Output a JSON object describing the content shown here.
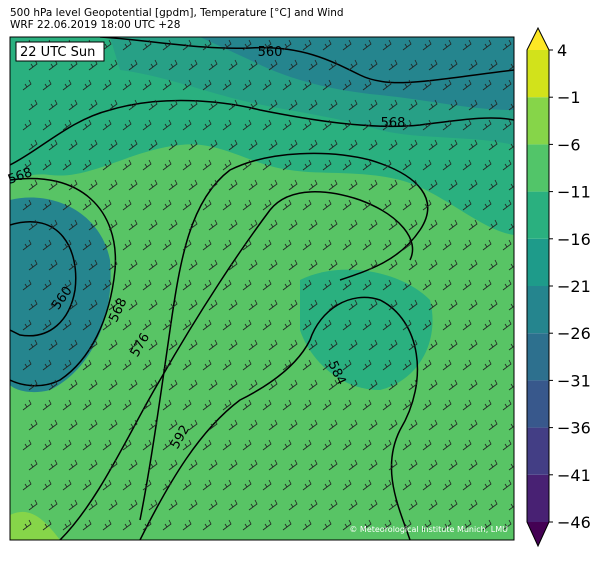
{
  "header": {
    "title": "500 hPa level Geopotential [gpdm], Temperature [°C] and Wind",
    "subtitle": "WRF 22.06.2019 18:00 UTC +28"
  },
  "map": {
    "time_label": "22 UTC Sun",
    "contour_labels": [
      "560",
      "568",
      "568",
      "560",
      "568",
      "576",
      "584",
      "592"
    ],
    "credit": "© Meteorological Institute Munich, LMU"
  },
  "colorbar": {
    "ticks": [
      {
        "value": -46,
        "label": "−46"
      },
      {
        "value": -41,
        "label": "−41"
      },
      {
        "value": -36,
        "label": "−36"
      },
      {
        "value": -31,
        "label": "−31"
      },
      {
        "value": -26,
        "label": "−26"
      },
      {
        "value": -21,
        "label": "−21"
      },
      {
        "value": -16,
        "label": "−16"
      },
      {
        "value": -11,
        "label": "−11"
      },
      {
        "value": -6,
        "label": "−6"
      },
      {
        "value": -1,
        "label": "−1"
      },
      4
    ],
    "colors": [
      "#482173",
      "#433e85",
      "#38588c",
      "#2d708e",
      "#25858e",
      "#1e9b8a",
      "#2ab07f",
      "#52c569",
      "#86d549",
      "#d2e21b"
    ],
    "under": "#440154",
    "over": "#fde725"
  }
}
